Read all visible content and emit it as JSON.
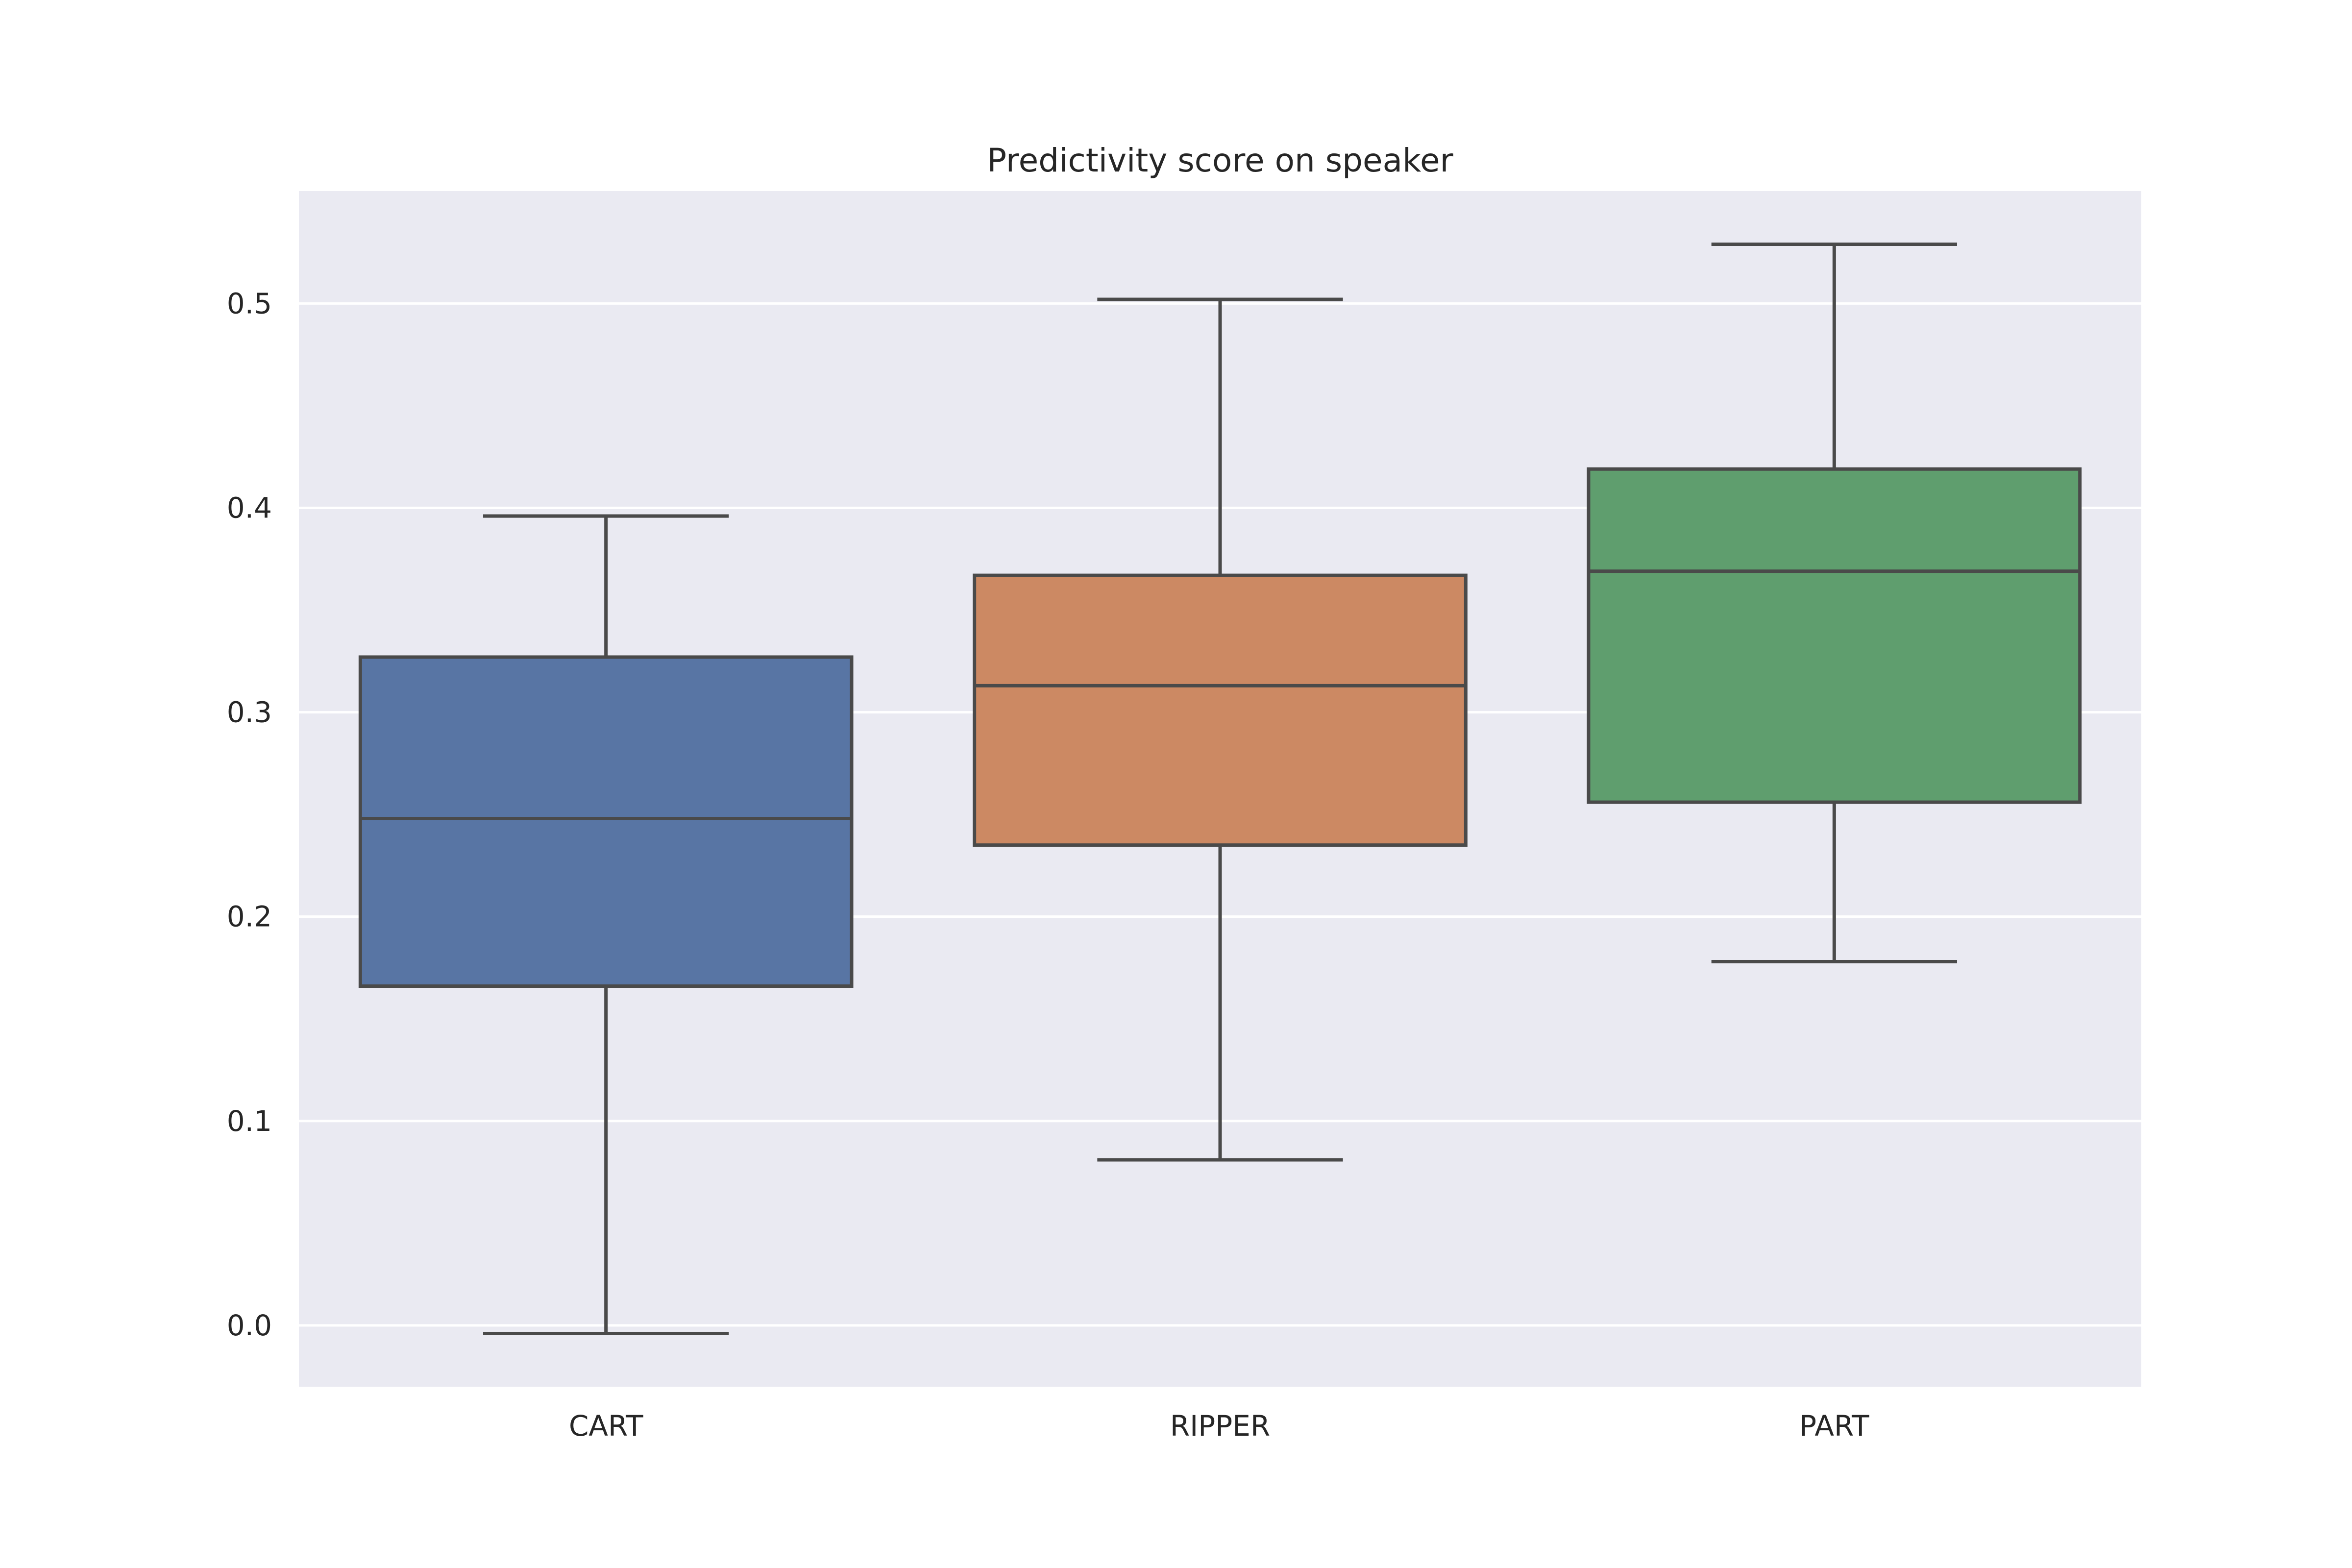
{
  "chart_data": {
    "type": "box",
    "title": "Predictivity score on speaker",
    "xlabel": "",
    "ylabel": "",
    "categories": [
      "CART",
      "RIPPER",
      "PART"
    ],
    "boxes": [
      {
        "category": "CART",
        "whisker_low": -0.004,
        "q1": 0.166,
        "median": 0.248,
        "q3": 0.327,
        "whisker_high": 0.396,
        "color": "#5875a4"
      },
      {
        "category": "RIPPER",
        "whisker_low": 0.081,
        "q1": 0.235,
        "median": 0.313,
        "q3": 0.367,
        "whisker_high": 0.502,
        "color": "#cc8963"
      },
      {
        "category": "PART",
        "whisker_low": 0.178,
        "q1": 0.256,
        "median": 0.369,
        "q3": 0.419,
        "whisker_high": 0.529,
        "color": "#5f9e6e"
      }
    ],
    "yticks": [
      0.0,
      0.1,
      0.2,
      0.3,
      0.4,
      0.5
    ],
    "ytick_labels": [
      "0.0",
      "0.1",
      "0.2",
      "0.3",
      "0.4",
      "0.5"
    ],
    "ylim": [
      -0.03,
      0.555
    ],
    "grid": true,
    "legend": "none",
    "colors": {
      "plot_background": "#eaeaf2",
      "grid": "#ffffff",
      "line": "#4a4a4a"
    }
  }
}
